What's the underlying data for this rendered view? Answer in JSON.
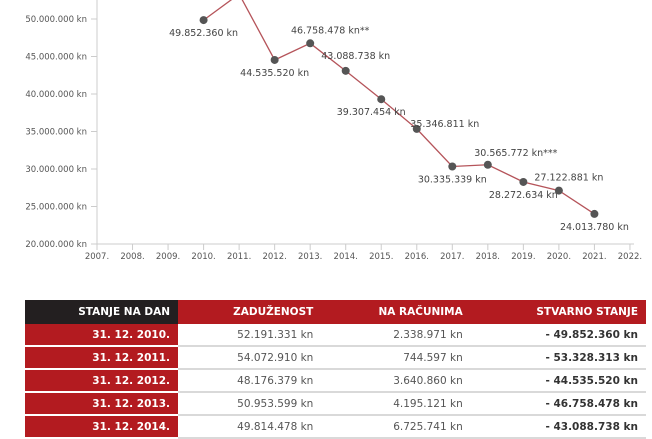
{
  "chart_data": {
    "type": "line",
    "x": [
      2010,
      2011,
      2012,
      2013,
      2014,
      2015,
      2016,
      2017,
      2018,
      2019,
      2020,
      2021
    ],
    "values": [
      49852360,
      53328313,
      44535520,
      46758478,
      43088738,
      39307454,
      35346811,
      30335339,
      30565772,
      28272634,
      27122881,
      24013780
    ],
    "labels": [
      "49.852.360 kn",
      "",
      "44.535.520 kn",
      "46.758.478 kn**",
      "43.088.738 kn",
      "39.307.454 kn",
      "35.346.811 kn",
      "30.335.339 kn",
      "30.565.772 kn***",
      "28.272.634 kn",
      "27.122.881 kn",
      "24.013.780 kn"
    ],
    "xticks": [
      "2007.",
      "2008.",
      "2009.",
      "2010.",
      "2011.",
      "2012.",
      "2013.",
      "2014.",
      "2015.",
      "2016.",
      "2017.",
      "2018.",
      "2019.",
      "2020.",
      "2021.",
      "2022."
    ],
    "yticks": [
      {
        "v": 20000000,
        "t": "20.000.000 kn"
      },
      {
        "v": 25000000,
        "t": "25.000.000 kn"
      },
      {
        "v": 30000000,
        "t": "30.000.000 kn"
      },
      {
        "v": 35000000,
        "t": "35.000.000 kn"
      },
      {
        "v": 40000000,
        "t": "40.000.000 kn"
      },
      {
        "v": 45000000,
        "t": "45.000.000 kn"
      },
      {
        "v": 50000000,
        "t": "50.000.000 kn"
      }
    ],
    "ylim": [
      20000000,
      55000000
    ],
    "line_color": "#b5545a",
    "point_color": "#555555"
  },
  "table": {
    "headers": [
      "STANJE NA DAN",
      "ZADUŽENOST",
      "NA RAČUNIMA",
      "STVARNO STANJE"
    ],
    "rows": [
      [
        "31. 12. 2010.",
        "52.191.331 kn",
        "2.338.971 kn",
        "- 49.852.360 kn"
      ],
      [
        "31. 12. 2011.",
        "54.072.910 kn",
        "744.597 kn",
        "- 53.328.313 kn"
      ],
      [
        "31. 12. 2012.",
        "48.176.379 kn",
        "3.640.860 kn",
        "- 44.535.520 kn"
      ],
      [
        "31. 12. 2013.",
        "50.953.599 kn",
        "4.195.121 kn",
        "- 46.758.478 kn"
      ],
      [
        "31. 12. 2014.",
        "49.814.478 kn",
        "6.725.741 kn",
        "- 43.088.738 kn"
      ]
    ]
  }
}
